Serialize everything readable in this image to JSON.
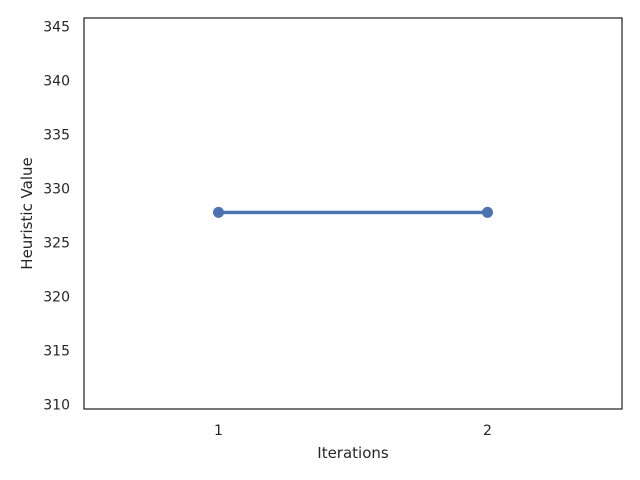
{
  "chart_data": {
    "type": "line",
    "title": "",
    "xlabel": "Iterations",
    "ylabel": "Heuristic Value",
    "categories": [
      "1",
      "2"
    ],
    "series": [
      {
        "values": [
          327.8,
          327.8
        ],
        "color": "#4c72b0"
      }
    ],
    "ylim": [
      309.6,
      345.8
    ],
    "yticks": [
      310,
      315,
      320,
      325,
      330,
      335,
      340,
      345
    ],
    "grid": false,
    "legend": "none"
  }
}
